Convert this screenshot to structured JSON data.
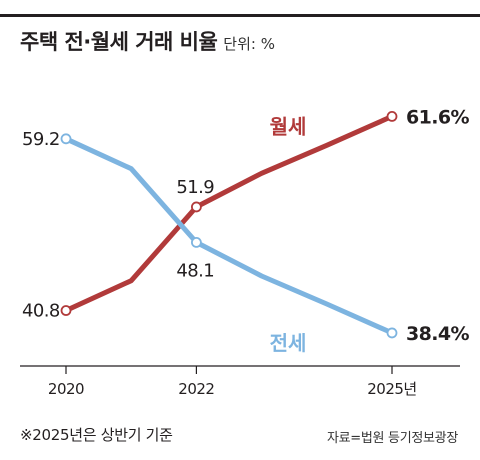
{
  "title": "주택 전·월세 거래 비율",
  "unit_label": "단위: %",
  "footnote": "※2025년은 상반기 기준",
  "source": "자료=법원 등기정보광장",
  "colors": {
    "jeonse": "#7db4e0",
    "wolse": "#b13a3a",
    "axis": "#231f20",
    "text": "#231f20"
  },
  "chart_data": {
    "type": "line",
    "x": [
      2020,
      2021,
      2022,
      2023,
      2024,
      2025
    ],
    "x_tick_labels": [
      {
        "x": 2020,
        "label": "2020"
      },
      {
        "x": 2022,
        "label": "2022"
      },
      {
        "x": 2025,
        "label": "2025년"
      }
    ],
    "ylim": [
      25,
      70
    ],
    "grid": false,
    "series": [
      {
        "name": "월세",
        "key": "wolse",
        "values": [
          40.8,
          44.0,
          51.9,
          55.5,
          58.5,
          61.6
        ],
        "labels": [
          {
            "x": 2020,
            "text": "40.8",
            "bold": false
          },
          {
            "x": 2022,
            "text": "51.9",
            "bold": false
          },
          {
            "x": 2025,
            "text": "61.6%",
            "bold": true
          }
        ]
      },
      {
        "name": "전세",
        "key": "jeonse",
        "values": [
          59.2,
          56.0,
          48.1,
          44.5,
          41.5,
          38.4
        ],
        "labels": [
          {
            "x": 2020,
            "text": "59.2",
            "bold": false
          },
          {
            "x": 2022,
            "text": "48.1",
            "bold": false
          },
          {
            "x": 2025,
            "text": "38.4%",
            "bold": true
          }
        ]
      }
    ]
  }
}
